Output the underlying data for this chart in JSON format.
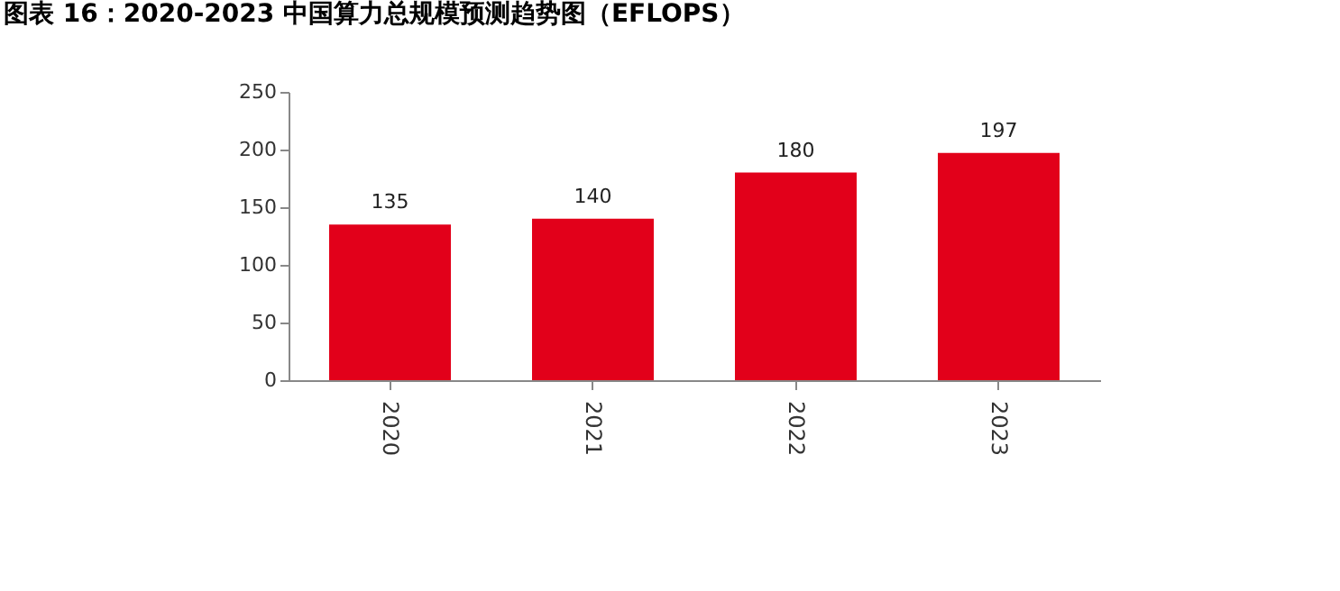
{
  "chart_data": {
    "type": "bar",
    "title": "图表 16：2020-2023 中国算力总规模预测趋势图（EFLOPS）",
    "categories": [
      "2020",
      "2021",
      "2022",
      "2023"
    ],
    "values": [
      135,
      140,
      180,
      197
    ],
    "color": "#e2001a",
    "ylim": [
      0,
      250
    ],
    "yticks": [
      0,
      50,
      100,
      150,
      200,
      250
    ],
    "data_labels": true
  }
}
